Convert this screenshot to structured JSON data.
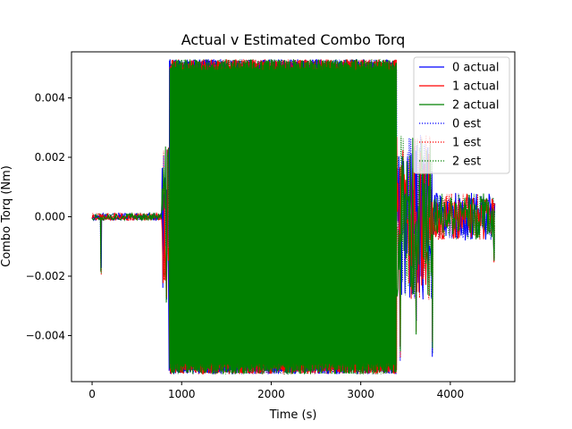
{
  "chart_data": {
    "type": "line",
    "title": "Actual v Estimated Combo Torq",
    "xlabel": "Time (s)",
    "ylabel": "Combo Torq (Nm)",
    "xlim": [
      -230,
      4720
    ],
    "ylim": [
      -0.00555,
      0.00555
    ],
    "x_ticks": [
      0,
      1000,
      2000,
      3000,
      4000
    ],
    "x_tick_labels": [
      "0",
      "1000",
      "2000",
      "3000",
      "4000"
    ],
    "y_ticks": [
      -0.004,
      -0.002,
      0.0,
      0.002,
      0.004
    ],
    "y_tick_labels": [
      "−0.004",
      "−0.002",
      "0.000",
      "0.002",
      "0.004"
    ],
    "grid": false,
    "legend_position": "upper right",
    "series": [
      {
        "name": "0 actual",
        "color": "#0000ff",
        "style": "solid",
        "seed": 11
      },
      {
        "name": "1 actual",
        "color": "#ff0000",
        "style": "solid",
        "seed": 23
      },
      {
        "name": "2 actual",
        "color": "#008000",
        "style": "solid",
        "seed": 37
      },
      {
        "name": "0 est",
        "color": "#0000ff",
        "style": "dotted",
        "seed": 11
      },
      {
        "name": "1 est",
        "color": "#ff0000",
        "style": "dotted",
        "seed": 23
      },
      {
        "name": "2 est",
        "color": "#008000",
        "style": "dotted",
        "seed": 37
      }
    ],
    "phases": [
      {
        "x_start": 0,
        "x_end": 780,
        "amplitude": 0.00012,
        "description": "near-zero start"
      },
      {
        "x_start": 780,
        "x_end": 860,
        "amplitude": 0.0025,
        "description": "ramp up"
      },
      {
        "x_start": 860,
        "x_end": 3400,
        "amplitude": 0.0053,
        "description": "saturated oscillation"
      },
      {
        "x_start": 3400,
        "x_end": 3800,
        "amplitude": 0.0028,
        "description": "decay with spikes"
      },
      {
        "x_start": 3800,
        "x_end": 4500,
        "amplitude": 0.0008,
        "description": "settling"
      }
    ],
    "spikes": [
      {
        "x": 100,
        "y": -0.0019
      },
      {
        "x": 830,
        "y": -0.0029
      },
      {
        "x": 840,
        "y": 0.0022
      },
      {
        "x": 3440,
        "y": -0.0048
      },
      {
        "x": 3620,
        "y": -0.0038
      },
      {
        "x": 3800,
        "y": -0.0046
      },
      {
        "x": 3700,
        "y": 0.0016
      },
      {
        "x": 4490,
        "y": -0.0015
      }
    ]
  }
}
